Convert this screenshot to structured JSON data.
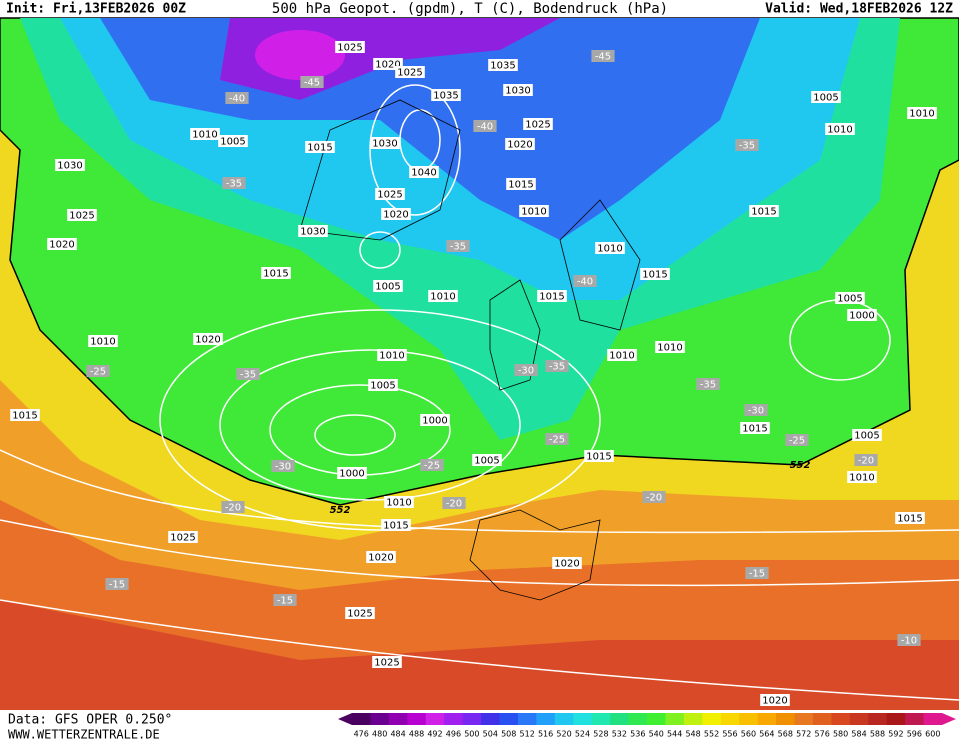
{
  "header": {
    "init": "Init: Fri,13FEB2026 00Z",
    "title": "500 hPa Geopot. (gpdm), T (C), Bodendruck (hPa)",
    "valid": "Valid: Wed,18FEB2026 12Z"
  },
  "footer": {
    "data": "Data: GFS OPER 0.250°",
    "site": "WWW.WETTERZENTRALE.DE"
  },
  "colorbar": {
    "labels": [
      476,
      480,
      484,
      488,
      492,
      496,
      500,
      504,
      508,
      512,
      516,
      520,
      524,
      528,
      532,
      536,
      540,
      544,
      548,
      552,
      556,
      560,
      564,
      568,
      572,
      576,
      580,
      584,
      588,
      592,
      596,
      600
    ],
    "colors": [
      "#4a0060",
      "#6a0090",
      "#9000b0",
      "#b800d0",
      "#d020e8",
      "#a020f0",
      "#7828f0",
      "#4030e8",
      "#2850f0",
      "#2878f8",
      "#20a0f8",
      "#20c8f0",
      "#20e0e0",
      "#20e8b0",
      "#20e080",
      "#30e850",
      "#40f030",
      "#80f020",
      "#c0f010",
      "#f0f000",
      "#f8d800",
      "#f8c000",
      "#f8a800",
      "#f09000",
      "#e87820",
      "#e06020",
      "#d84820",
      "#c83820",
      "#b82820",
      "#a81818",
      "#c01850",
      "#e01890"
    ]
  },
  "contour_labels": [
    "552",
    "552"
  ],
  "isobar_labels": [
    "1025",
    "1020",
    "1025",
    "1035",
    "1030",
    "1035",
    "1005",
    "1010",
    "1010",
    "1005",
    "1015",
    "1030",
    "1025",
    "1020",
    "1010",
    "1030",
    "1040",
    "1015",
    "1025",
    "1020",
    "1010",
    "1015",
    "1025",
    "1030",
    "1020",
    "1010",
    "1015",
    "1015",
    "1005",
    "1010",
    "1015",
    "1005",
    "1000",
    "1010",
    "1020",
    "1010",
    "1010",
    "1010",
    "1005",
    "1000",
    "1015",
    "1015",
    "1005",
    "1000",
    "1005",
    "1015",
    "1010",
    "1010",
    "1015",
    "1015",
    "1025",
    "1020",
    "1020",
    "1025",
    "1025",
    "1020"
  ],
  "temperature_labels": [
    "-45",
    "-45",
    "-40",
    "-40",
    "-35",
    "-35",
    "-35",
    "-40",
    "-35",
    "-30",
    "-25",
    "-35",
    "-35",
    "-30",
    "-25",
    "-25",
    "-25",
    "-30",
    "-20",
    "-20",
    "-20",
    "-20",
    "-15",
    "-15",
    "-15",
    "-10"
  ]
}
